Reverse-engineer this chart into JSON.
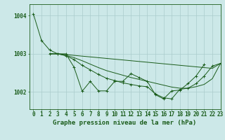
{
  "title": "Graphe pression niveau de la mer (hPa)",
  "background_color": "#cce8e8",
  "grid_color": "#aacccc",
  "line_color": "#1a5c1a",
  "marker_color": "#1a5c1a",
  "xlim": [
    -0.5,
    23
  ],
  "ylim": [
    1001.55,
    1004.3
  ],
  "title_fontsize": 6.5,
  "tick_fontsize": 5.5,
  "ytick_values": [
    1002,
    1003,
    1004
  ],
  "series0_x": [
    0,
    1,
    2,
    3,
    4,
    5,
    6,
    7,
    8,
    9,
    10,
    11,
    12,
    13,
    14,
    15,
    16,
    17,
    18,
    19,
    20,
    21
  ],
  "series0_y": [
    1004.05,
    1003.35,
    1003.1,
    1003.0,
    1003.0,
    1002.65,
    1002.02,
    1002.28,
    1002.03,
    1002.03,
    1002.28,
    1002.28,
    1002.48,
    1002.38,
    1002.28,
    1001.93,
    1001.82,
    1002.03,
    1002.05,
    1002.22,
    1002.42,
    1002.72
  ],
  "series1_x": [
    2,
    3,
    4,
    5,
    6,
    7,
    8,
    9,
    10,
    11,
    12,
    13,
    14,
    15,
    16,
    17,
    18,
    19,
    20,
    21,
    22,
    23
  ],
  "series1_y": [
    1003.0,
    1003.0,
    1002.98,
    1002.96,
    1002.94,
    1002.92,
    1002.9,
    1002.88,
    1002.86,
    1002.84,
    1002.82,
    1002.8,
    1002.78,
    1002.76,
    1002.74,
    1002.72,
    1002.7,
    1002.68,
    1002.66,
    1002.64,
    1002.62,
    1002.75
  ],
  "series2_x": [
    2,
    3,
    4,
    5,
    6,
    7,
    8,
    9,
    10,
    11,
    12,
    13,
    14,
    15,
    16,
    17,
    18,
    19,
    20,
    21,
    22,
    23
  ],
  "series2_y": [
    1003.0,
    1003.0,
    1002.96,
    1002.9,
    1002.82,
    1002.73,
    1002.64,
    1002.56,
    1002.5,
    1002.44,
    1002.38,
    1002.33,
    1002.28,
    1002.23,
    1002.18,
    1002.13,
    1002.1,
    1002.1,
    1002.14,
    1002.2,
    1002.35,
    1002.75
  ],
  "series3_x": [
    2,
    3,
    4,
    5,
    6,
    7,
    8,
    9,
    10,
    11,
    12,
    13,
    14,
    15,
    16,
    17,
    18,
    19,
    20,
    21,
    22,
    23
  ],
  "series3_y": [
    1003.0,
    1003.0,
    1002.95,
    1002.85,
    1002.7,
    1002.58,
    1002.46,
    1002.36,
    1002.3,
    1002.24,
    1002.2,
    1002.16,
    1002.14,
    1001.95,
    1001.85,
    1001.82,
    1002.07,
    1002.1,
    1002.22,
    1002.42,
    1002.68,
    1002.75
  ],
  "xtick_labels": [
    "0",
    "1",
    "2",
    "3",
    "4",
    "5",
    "6",
    "7",
    "8",
    "9",
    "10",
    "11",
    "12",
    "13",
    "14",
    "15",
    "16",
    "17",
    "18",
    "19",
    "20",
    "21",
    "22",
    "23"
  ]
}
